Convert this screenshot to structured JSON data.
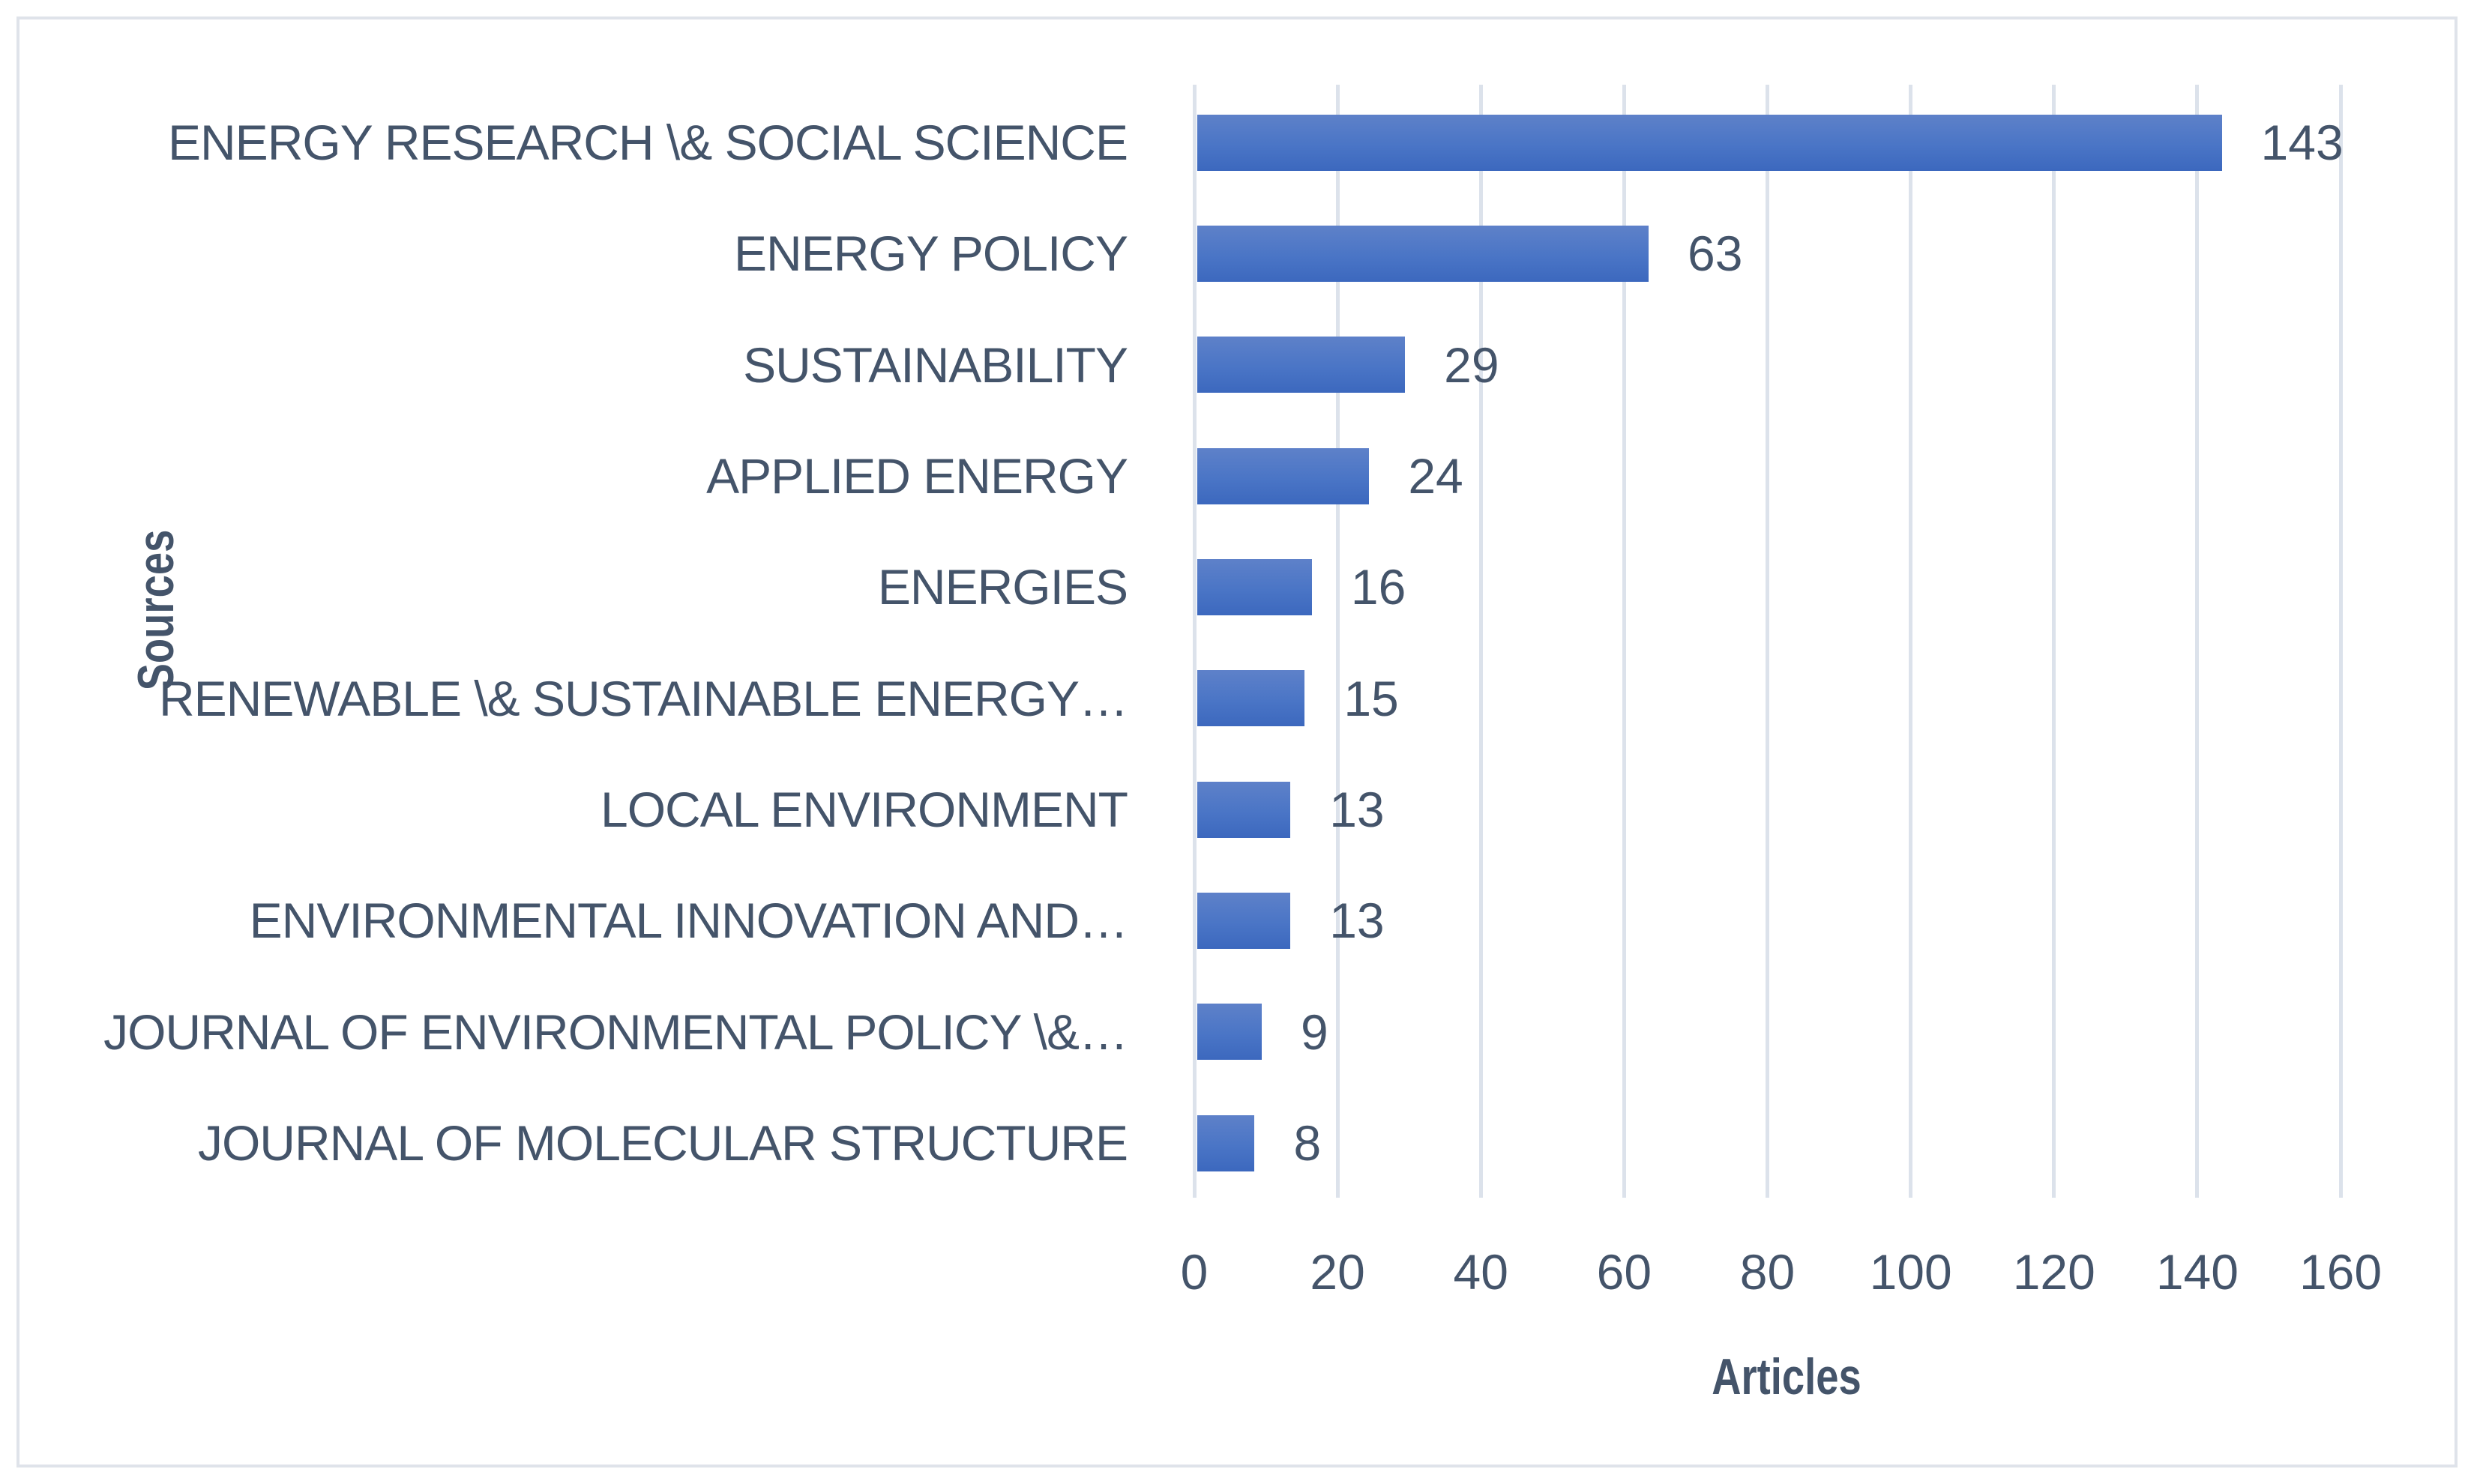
{
  "chart_data": {
    "type": "bar",
    "orientation": "horizontal",
    "title": "",
    "categories": [
      "ENERGY RESEARCH \\& SOCIAL SCIENCE",
      "ENERGY POLICY",
      "SUSTAINABILITY",
      "APPLIED ENERGY",
      "ENERGIES",
      "RENEWABLE \\& SUSTAINABLE ENERGY…",
      "LOCAL ENVIRONMENT",
      "ENVIRONMENTAL INNOVATION AND…",
      "JOURNAL OF ENVIRONMENTAL POLICY \\&…",
      "JOURNAL OF MOLECULAR STRUCTURE"
    ],
    "values": [
      143,
      63,
      29,
      24,
      16,
      15,
      13,
      13,
      9,
      8
    ],
    "xlabel": "Articles",
    "ylabel": "Sources",
    "xlim": [
      0,
      160
    ],
    "xticks": [
      0,
      20,
      40,
      60,
      80,
      100,
      120,
      140,
      160
    ],
    "grid": "vertical",
    "legend": "none",
    "value_labels_shown": true,
    "colors": {
      "background": "#ffffff",
      "frame_border": "#dfe3ea",
      "gridline": "#dce2eb",
      "bar_top": "#5e81c9",
      "bar_mid": "#4a75c6",
      "bar_bottom": "#3c68be",
      "text": "#44546a"
    }
  }
}
